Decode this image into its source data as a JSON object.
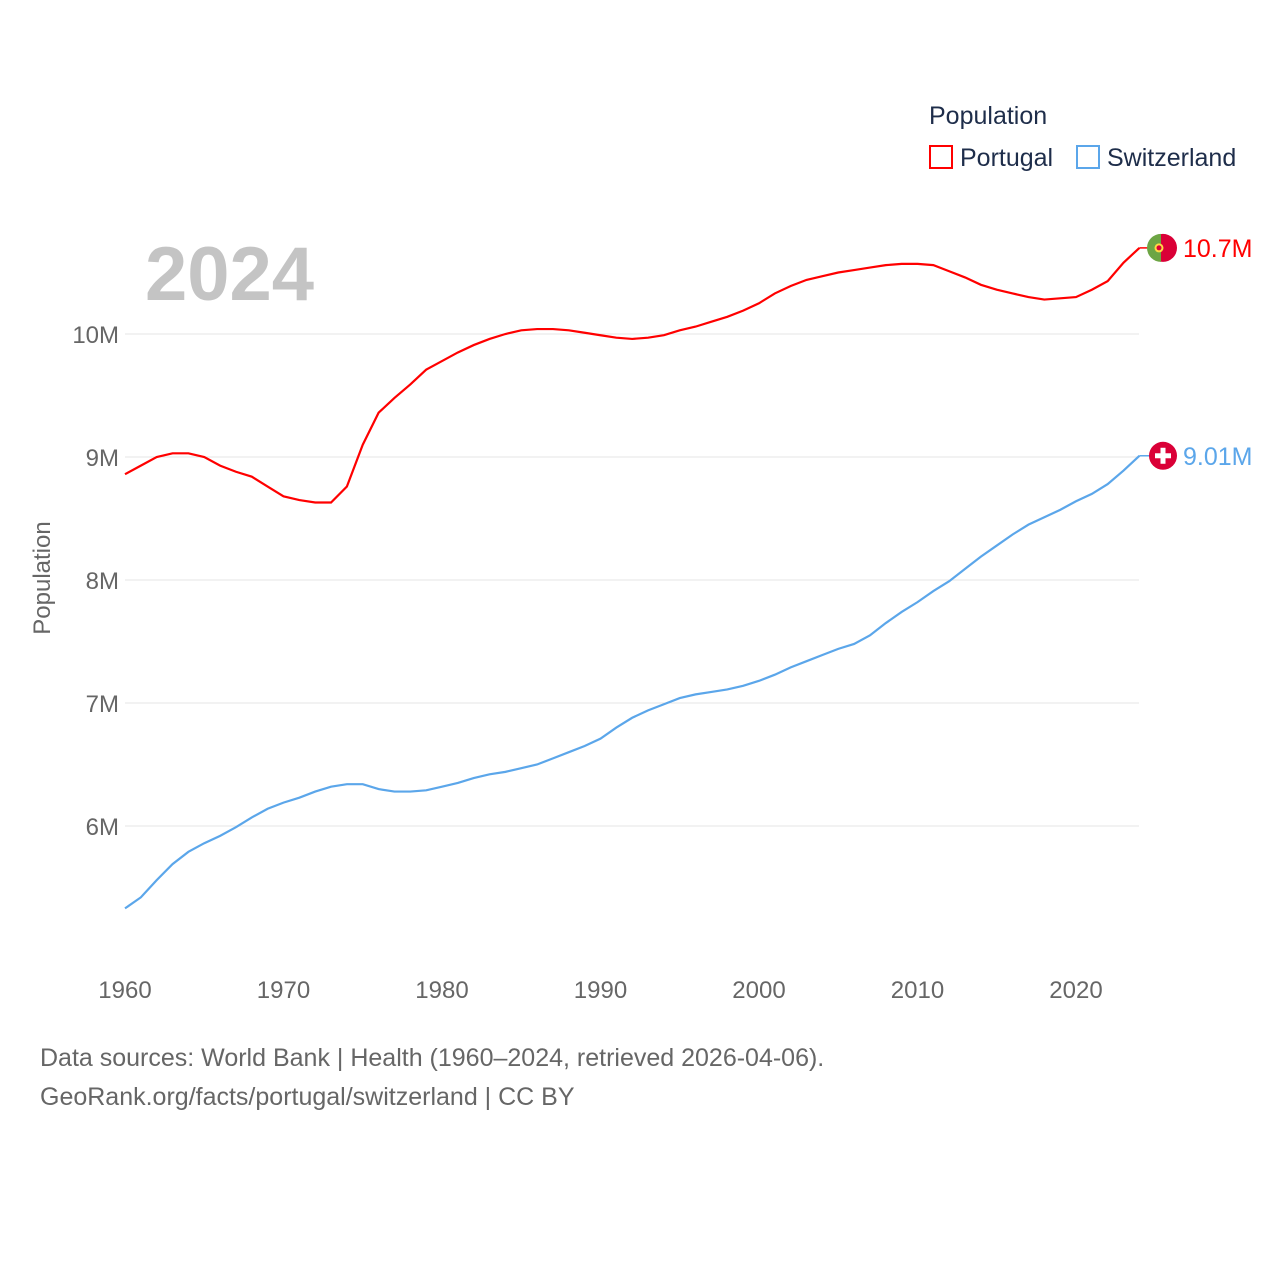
{
  "chart_data": {
    "type": "line",
    "title": "2024",
    "ylabel": "Population",
    "xlabel": "",
    "ylim": [
      5000000,
      11000000
    ],
    "xlim": [
      1960,
      2024
    ],
    "grid": true,
    "legend_title": "Population",
    "legend_placement": "top-right",
    "y_ticks": [
      {
        "v": 6000000,
        "label": "6M"
      },
      {
        "v": 7000000,
        "label": "7M"
      },
      {
        "v": 8000000,
        "label": "8M"
      },
      {
        "v": 9000000,
        "label": "9M"
      },
      {
        "v": 10000000,
        "label": "10M"
      }
    ],
    "x_ticks": [
      {
        "v": 1960,
        "label": "1960"
      },
      {
        "v": 1970,
        "label": "1970"
      },
      {
        "v": 1980,
        "label": "1980"
      },
      {
        "v": 1990,
        "label": "1990"
      },
      {
        "v": 2000,
        "label": "2000"
      },
      {
        "v": 2010,
        "label": "2010"
      },
      {
        "v": 2020,
        "label": "2020"
      }
    ],
    "x_start": 1960,
    "series": [
      {
        "name": "Portugal",
        "color": "#ff0000",
        "end_label": "10.7M",
        "flag": "portugal-flag",
        "values": [
          8.86,
          8.93,
          9.0,
          9.03,
          9.03,
          9.0,
          8.93,
          8.88,
          8.84,
          8.76,
          8.68,
          8.65,
          8.63,
          8.63,
          8.76,
          9.1,
          9.36,
          9.48,
          9.59,
          9.71,
          9.78,
          9.85,
          9.91,
          9.96,
          10.0,
          10.03,
          10.04,
          10.04,
          10.03,
          10.01,
          9.99,
          9.97,
          9.96,
          9.97,
          9.99,
          10.03,
          10.06,
          10.1,
          10.14,
          10.19,
          10.25,
          10.33,
          10.39,
          10.44,
          10.47,
          10.5,
          10.52,
          10.54,
          10.56,
          10.57,
          10.57,
          10.56,
          10.51,
          10.46,
          10.4,
          10.36,
          10.33,
          10.3,
          10.28,
          10.29,
          10.3,
          10.36,
          10.43,
          10.58,
          10.7
        ]
      },
      {
        "name": "Switzerland",
        "color": "#5ba6ea",
        "end_label": "9.01M",
        "flag": "switzerland-flag",
        "values": [
          5.33,
          5.42,
          5.56,
          5.69,
          5.79,
          5.86,
          5.92,
          5.99,
          6.07,
          6.14,
          6.19,
          6.23,
          6.28,
          6.32,
          6.34,
          6.34,
          6.3,
          6.28,
          6.28,
          6.29,
          6.32,
          6.35,
          6.39,
          6.42,
          6.44,
          6.47,
          6.5,
          6.55,
          6.6,
          6.65,
          6.71,
          6.8,
          6.88,
          6.94,
          6.99,
          7.04,
          7.07,
          7.09,
          7.11,
          7.14,
          7.18,
          7.23,
          7.29,
          7.34,
          7.39,
          7.44,
          7.48,
          7.55,
          7.65,
          7.74,
          7.82,
          7.91,
          7.99,
          8.09,
          8.19,
          8.28,
          8.37,
          8.45,
          8.51,
          8.57,
          8.64,
          8.7,
          8.78,
          8.89,
          9.01
        ]
      }
    ]
  },
  "footer": {
    "line1": "Data sources: World Bank | Health (1960–2024, retrieved 2026-04-06).",
    "line2": "GeoRank.org/facts/portugal/switzerland | CC BY"
  }
}
